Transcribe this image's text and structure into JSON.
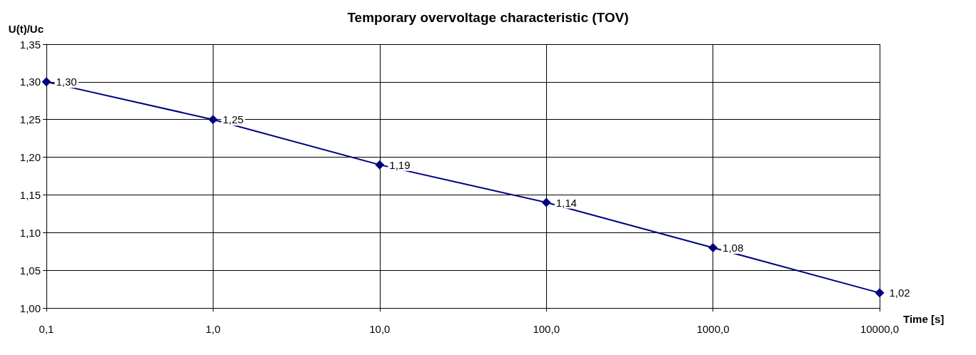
{
  "chart_data": {
    "type": "line",
    "title": "Temporary overvoltage characteristic (TOV)",
    "xlabel": "Time [s]",
    "ylabel": "U(t)/Uc",
    "x": [
      0.1,
      1,
      10,
      100,
      1000,
      10000
    ],
    "series": [
      {
        "color": "#000080",
        "values": [
          1.3,
          1.25,
          1.19,
          1.14,
          1.08,
          1.02
        ],
        "value_labels": [
          "1,30",
          "1,25",
          "1,19",
          "1,14",
          "1,08",
          "1,02"
        ]
      }
    ],
    "log": "x",
    "xlim": [
      0.1,
      10000
    ],
    "xticks": [
      {
        "value": 0.1,
        "label": "0,1"
      },
      {
        "value": 1,
        "label": "1,0"
      },
      {
        "value": 10,
        "label": "10,0"
      },
      {
        "value": 100,
        "label": "100,0"
      },
      {
        "value": 1000,
        "label": "1000,0"
      },
      {
        "value": 10000,
        "label": "10000,0"
      }
    ],
    "ylim": [
      1.0,
      1.35
    ],
    "yticks": [
      {
        "value": 1.0,
        "label": "1,00"
      },
      {
        "value": 1.05,
        "label": "1,05"
      },
      {
        "value": 1.1,
        "label": "1,10"
      },
      {
        "value": 1.15,
        "label": "1,15"
      },
      {
        "value": 1.2,
        "label": "1,20"
      },
      {
        "value": 1.25,
        "label": "1,25"
      },
      {
        "value": 1.3,
        "label": "1,30"
      },
      {
        "value": 1.35,
        "label": "1,35"
      }
    ],
    "grid": true,
    "marker": "diamond",
    "line_style": "solid"
  }
}
